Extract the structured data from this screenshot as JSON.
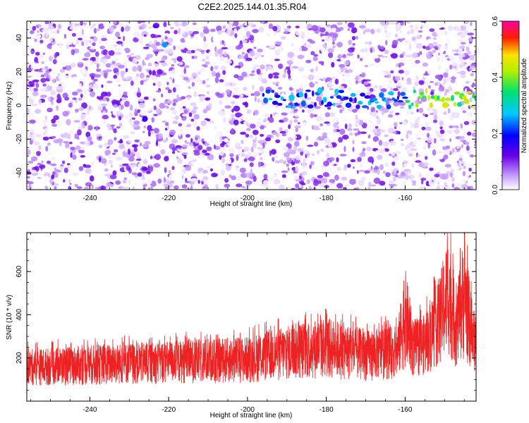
{
  "title": "C2E2.2025.144.01.35.R04",
  "chart_data": [
    {
      "type": "heatmap",
      "xlabel": "Height of straight line (km)",
      "ylabel": "Frequency (Hz)",
      "xlim": [
        -256,
        -142
      ],
      "ylim": [
        -50,
        50
      ],
      "xticks": [
        -240,
        -220,
        -200,
        -180,
        -160
      ],
      "yticks": [
        -40,
        -20,
        0,
        20,
        40
      ],
      "colorbar": {
        "label": "Normalized spectral amplitude",
        "range": [
          0,
          0.6
        ],
        "ticks": [
          "0.0",
          "0.2",
          "0.4",
          "0.6"
        ],
        "colormap": "rainbow (white to violet, blue, cyan, green, yellow, red, magenta)"
      },
      "features": [
        {
          "x_range": [
            -196,
            -142
          ],
          "frequency_hz": 4,
          "amplitude": "elevated (0.2-0.5)"
        },
        {
          "x": -221,
          "frequency_hz": 36,
          "amplitude": 0.25
        },
        {
          "x": -226,
          "frequency_hz": -8,
          "amplitude": 0.15
        }
      ],
      "background_amplitude": "0.0-0.15 (noise)"
    },
    {
      "type": "line",
      "xlabel": "Height of straight line (km)",
      "ylabel": "SNR (10 * v/v)",
      "xlim": [
        -256,
        -142
      ],
      "ylim": [
        0,
        780
      ],
      "xticks": [
        -240,
        -220,
        -200,
        -180,
        -160
      ],
      "yticks": [
        200,
        400,
        600
      ],
      "color": "#ee2222",
      "envelope": [
        {
          "x": -256,
          "low": 40,
          "high": 240
        },
        {
          "x": -240,
          "low": 40,
          "high": 260
        },
        {
          "x": -220,
          "low": 45,
          "high": 280
        },
        {
          "x": -200,
          "low": 45,
          "high": 300
        },
        {
          "x": -186,
          "low": 50,
          "high": 370
        },
        {
          "x": -180,
          "low": 50,
          "high": 390
        },
        {
          "x": -170,
          "low": 50,
          "high": 330
        },
        {
          "x": -162,
          "low": 60,
          "high": 350
        },
        {
          "x": -160,
          "low": 70,
          "high": 620
        },
        {
          "x": -158,
          "low": 60,
          "high": 380
        },
        {
          "x": -155,
          "low": 70,
          "high": 400
        },
        {
          "x": -151,
          "low": 90,
          "high": 600
        },
        {
          "x": -149,
          "low": 100,
          "high": 790
        },
        {
          "x": -147,
          "low": 90,
          "high": 500
        },
        {
          "x": -145,
          "low": 80,
          "high": 790
        },
        {
          "x": -143,
          "low": 80,
          "high": 450
        },
        {
          "x": -142,
          "low": 80,
          "high": 400
        }
      ]
    }
  ]
}
